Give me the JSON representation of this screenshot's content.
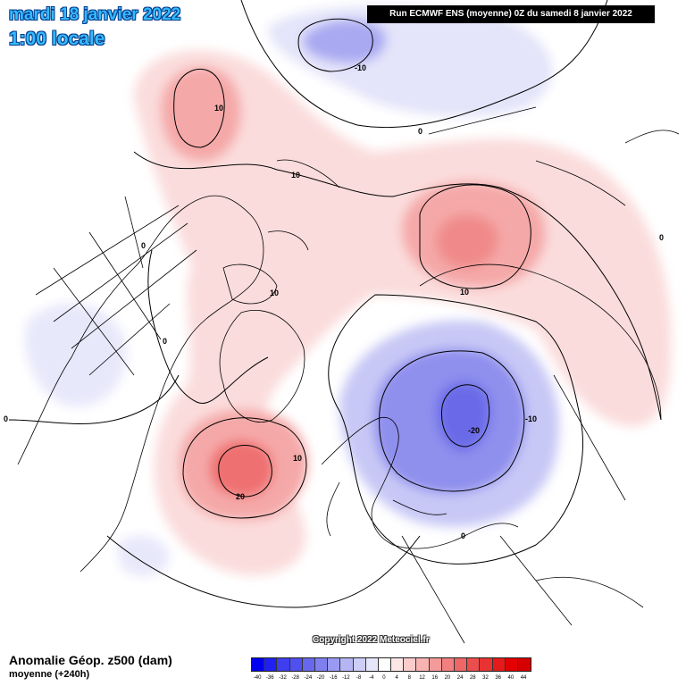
{
  "header": {
    "date": "mardi 18 janvier 2022",
    "time": "1:00 locale",
    "run": "Run ECMWF ENS (moyenne) 0Z du samedi 8 janvier 2022"
  },
  "footer": {
    "variable": "Anomalie Géop. z500 (dam)",
    "subtitle": "moyenne   (+240h)",
    "copyright": "Copyright 2022 Meteociel.fr"
  },
  "legend": {
    "levels": [
      "-40",
      "-36",
      "-32",
      "-28",
      "-24",
      "-20",
      "-16",
      "-12",
      "-8",
      "-4",
      "0",
      "4",
      "8",
      "12",
      "16",
      "20",
      "24",
      "28",
      "32",
      "36",
      "40",
      "44"
    ],
    "colors": [
      "#0000f0",
      "#2020f2",
      "#3f3ff0",
      "#5050ee",
      "#6868ee",
      "#7f7ff0",
      "#9a9af2",
      "#b5b5f4",
      "#cdcdf7",
      "#e6e6fb",
      "#ffffff",
      "#fde6e6",
      "#fbcccc",
      "#f8b3b3",
      "#f59a9a",
      "#f28080",
      "#ef6666",
      "#ec4d4d",
      "#e93333",
      "#e61a1a",
      "#e30000",
      "#d60000"
    ]
  },
  "contour_labels": [
    {
      "text": "10"
    },
    {
      "text": "-10"
    },
    {
      "text": "0"
    },
    {
      "text": "10"
    },
    {
      "text": "0"
    },
    {
      "text": "10"
    },
    {
      "text": "0"
    },
    {
      "text": "0"
    },
    {
      "text": "10"
    },
    {
      "text": "20"
    },
    {
      "text": "10"
    },
    {
      "text": "-10"
    },
    {
      "text": "-20"
    },
    {
      "text": "0"
    },
    {
      "text": "0"
    },
    {
      "text": "10"
    }
  ]
}
